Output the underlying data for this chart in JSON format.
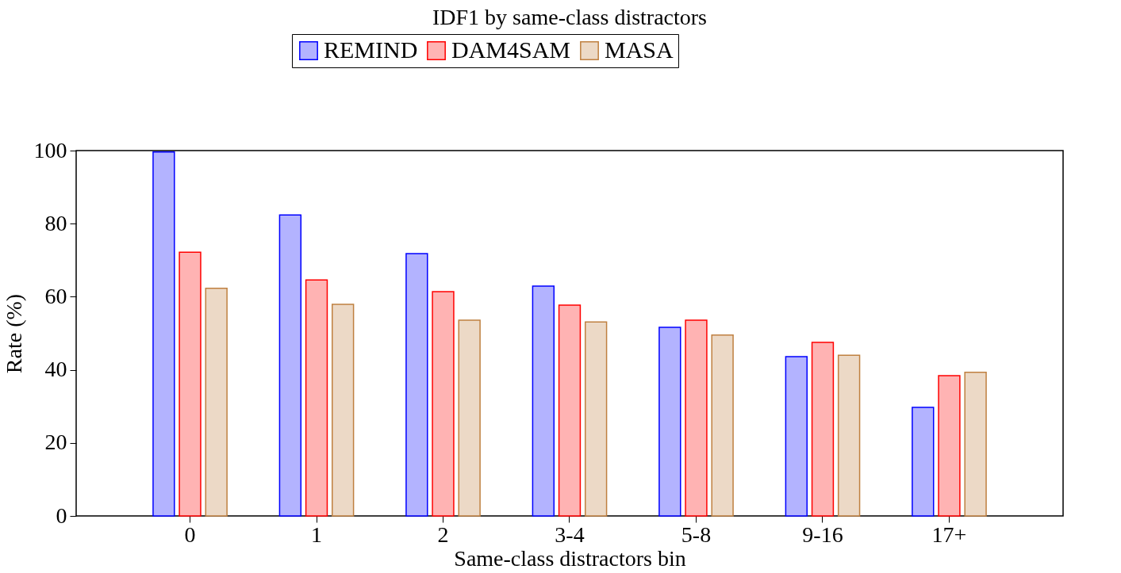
{
  "chart_data": {
    "type": "bar",
    "title": "IDF1 by same-class distractors",
    "xlabel": "Same-class distractors bin",
    "ylabel": "Rate (%)",
    "categories": [
      "0",
      "1",
      "2",
      "3-4",
      "5-8",
      "9-16",
      "17+"
    ],
    "series": [
      {
        "name": "REMIND",
        "color": "#0000ff",
        "values": [
          99.6,
          82.4,
          71.8,
          62.9,
          51.6,
          43.6,
          29.7
        ]
      },
      {
        "name": "DAM4SAM",
        "color": "#ff0000",
        "values": [
          72.2,
          64.6,
          61.4,
          57.7,
          53.6,
          47.5,
          38.4
        ]
      },
      {
        "name": "MASA",
        "color": "#bf8040",
        "values": [
          62.3,
          57.9,
          53.6,
          53.1,
          49.5,
          44.0,
          39.3
        ]
      }
    ],
    "ylim": [
      0,
      100
    ],
    "yticks": [
      0,
      20,
      40,
      60,
      80,
      100
    ],
    "grid": false,
    "legend": "top"
  }
}
